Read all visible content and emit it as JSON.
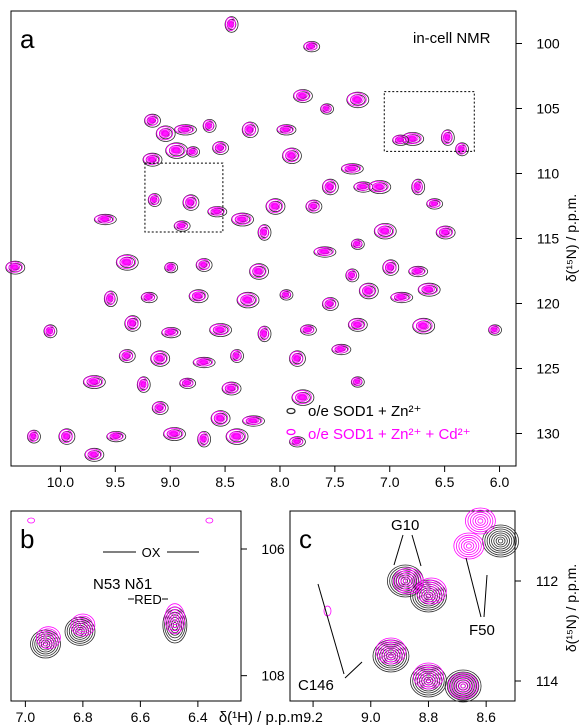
{
  "figure": {
    "x_axis_title_main": "δ(¹H) / p.p.m.",
    "y_axis_title_main": "δ(¹⁵N) / p.p.m.",
    "y_axis_title_c": "δ(¹⁵N) / p.p.m.",
    "x_axis_title_bottom": "δ(¹H) / p.p.m."
  },
  "colors": {
    "black_series": "#2b2b2b",
    "magenta_series": "#ff00ff"
  },
  "chart_data": [
    {
      "panel": "a",
      "type": "scatter",
      "subtype": "2D NMR HSQC contour",
      "title": "in-cell NMR",
      "xlabel": "δ(¹H) / p.p.m.",
      "ylabel": "δ(¹⁵N) / p.p.m.",
      "xlim": [
        10.45,
        5.85
      ],
      "ylim": [
        97.5,
        132.5
      ],
      "x_ticks": [
        10.0,
        9.5,
        9.0,
        8.5,
        8.0,
        7.5,
        7.0,
        6.5,
        6.0
      ],
      "y_ticks": [
        100,
        105,
        110,
        115,
        120,
        125,
        130
      ],
      "legend": "bottom-right",
      "series": [
        {
          "name": "o/e SOD1 + Zn²⁺",
          "color": "#2b2b2b"
        },
        {
          "name": "o/e SOD1 + Zn²⁺ + Cd²⁺",
          "color": "#ff00ff"
        }
      ],
      "peaks": [
        [
          8.45,
          98.5
        ],
        [
          7.72,
          100.2
        ],
        [
          7.8,
          104.0
        ],
        [
          7.3,
          104.3
        ],
        [
          7.58,
          105.0
        ],
        [
          9.17,
          105.9
        ],
        [
          9.05,
          106.9
        ],
        [
          8.87,
          106.6
        ],
        [
          8.65,
          106.3
        ],
        [
          8.28,
          106.6
        ],
        [
          7.95,
          106.6
        ],
        [
          6.8,
          107.3
        ],
        [
          6.48,
          107.2
        ],
        [
          6.91,
          107.4
        ],
        [
          9.17,
          108.9
        ],
        [
          8.95,
          108.2
        ],
        [
          8.8,
          108.3
        ],
        [
          8.55,
          108.0
        ],
        [
          7.9,
          108.6
        ],
        [
          7.35,
          109.6
        ],
        [
          6.35,
          108.1
        ],
        [
          7.55,
          111.0
        ],
        [
          7.25,
          111.0
        ],
        [
          7.1,
          111.0
        ],
        [
          6.75,
          111.0
        ],
        [
          6.6,
          112.3
        ],
        [
          6.5,
          114.5
        ],
        [
          7.05,
          114.4
        ],
        [
          7.3,
          115.4
        ],
        [
          7.7,
          112.5
        ],
        [
          8.05,
          112.5
        ],
        [
          9.6,
          113.5
        ],
        [
          9.15,
          112.0
        ],
        [
          8.82,
          112.2
        ],
        [
          8.58,
          112.9
        ],
        [
          8.35,
          113.5
        ],
        [
          8.15,
          114.5
        ],
        [
          8.9,
          114.0
        ],
        [
          10.42,
          117.2
        ],
        [
          9.4,
          116.8
        ],
        [
          9.0,
          117.2
        ],
        [
          8.7,
          117.0
        ],
        [
          8.2,
          117.5
        ],
        [
          7.6,
          116.0
        ],
        [
          7.35,
          117.8
        ],
        [
          7.0,
          117.2
        ],
        [
          6.75,
          117.5
        ],
        [
          6.65,
          118.9
        ],
        [
          9.55,
          119.6
        ],
        [
          9.2,
          119.5
        ],
        [
          8.75,
          119.4
        ],
        [
          8.3,
          119.7
        ],
        [
          7.95,
          119.3
        ],
        [
          7.55,
          120.0
        ],
        [
          7.2,
          119.0
        ],
        [
          6.9,
          119.5
        ],
        [
          10.1,
          122.1
        ],
        [
          9.35,
          121.5
        ],
        [
          9.0,
          122.2
        ],
        [
          8.55,
          122.0
        ],
        [
          8.15,
          122.3
        ],
        [
          7.75,
          122.0
        ],
        [
          7.3,
          121.6
        ],
        [
          6.7,
          121.7
        ],
        [
          6.05,
          122.0
        ],
        [
          9.4,
          124.0
        ],
        [
          9.1,
          124.2
        ],
        [
          8.7,
          124.5
        ],
        [
          8.4,
          124.0
        ],
        [
          7.85,
          124.2
        ],
        [
          7.45,
          123.5
        ],
        [
          9.7,
          126.0
        ],
        [
          9.25,
          126.2
        ],
        [
          8.85,
          126.1
        ],
        [
          8.45,
          126.5
        ],
        [
          7.8,
          127.2
        ],
        [
          7.3,
          126.0
        ],
        [
          9.1,
          128.0
        ],
        [
          8.55,
          128.8
        ],
        [
          8.25,
          129.0
        ],
        [
          10.25,
          130.2
        ],
        [
          9.95,
          130.2
        ],
        [
          9.5,
          130.2
        ],
        [
          8.97,
          130.0
        ],
        [
          8.7,
          130.4
        ],
        [
          7.85,
          130.6
        ],
        [
          9.7,
          131.6
        ],
        [
          8.4,
          130.2
        ]
      ],
      "boxes": [
        {
          "x": [
            7.05,
            6.23
          ],
          "y": [
            103.7,
            108.3
          ]
        },
        {
          "x": [
            9.23,
            8.52
          ],
          "y": [
            109.2,
            114.5
          ]
        }
      ]
    },
    {
      "panel": "b",
      "type": "scatter",
      "subtype": "2D NMR HSQC contour",
      "xlim": [
        7.05,
        6.25
      ],
      "ylim": [
        105.4,
        108.4
      ],
      "x_ticks": [
        7.0,
        6.8,
        6.6,
        6.4
      ],
      "y_ticks": [
        106,
        108
      ],
      "peak_label": "N53 Nδ1",
      "ox_label": "OX",
      "red_label": "RED",
      "peaks_black": [
        [
          6.93,
          107.5
        ],
        [
          6.81,
          107.3
        ],
        [
          6.48,
          107.2
        ]
      ],
      "peaks_magenta": [
        [
          6.92,
          107.4
        ],
        [
          6.8,
          107.2
        ],
        [
          6.48,
          107.1
        ]
      ],
      "ox_peaks": [
        [
          6.98,
          105.55
        ],
        [
          6.36,
          105.55
        ]
      ]
    },
    {
      "panel": "c",
      "type": "scatter",
      "subtype": "2D NMR HSQC contour",
      "xlim": [
        9.28,
        8.5
      ],
      "ylim": [
        110.6,
        114.4
      ],
      "x_ticks": [
        9.2,
        9.0,
        8.8,
        8.6
      ],
      "y_ticks": [
        112,
        114
      ],
      "ylabel": "δ(¹⁵N) / p.p.m.",
      "labels": [
        "G10",
        "F50",
        "C146"
      ],
      "peaks_black": [
        [
          8.88,
          112.0
        ],
        [
          8.8,
          112.3
        ],
        [
          8.55,
          111.2
        ],
        [
          8.93,
          113.5
        ],
        [
          8.8,
          114.0
        ],
        [
          8.68,
          114.1
        ]
      ],
      "peaks_magenta": [
        [
          8.87,
          112.0
        ],
        [
          8.79,
          112.2
        ],
        [
          8.62,
          110.8
        ],
        [
          8.66,
          111.3
        ],
        [
          9.15,
          112.6
        ],
        [
          8.93,
          113.4
        ],
        [
          8.8,
          113.9
        ],
        [
          8.68,
          114.1
        ]
      ]
    }
  ]
}
